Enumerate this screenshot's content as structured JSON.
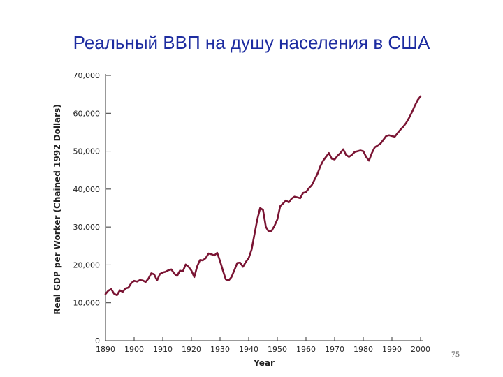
{
  "slide": {
    "title": "Реальный ВВП на душу населения в США",
    "page_number": "75"
  },
  "colors": {
    "line": "#7a1433",
    "axis": "#333333",
    "title": "#1d2ca0"
  },
  "chart_data": {
    "type": "line",
    "title": "Реальный ВВП на душу населения в США",
    "xlabel": "Year",
    "ylabel": "Real GDP per Worker (Chained 1992 Dollars)",
    "xlim": [
      1890,
      2000
    ],
    "ylim": [
      0,
      70000
    ],
    "grid": false,
    "x_ticks": [
      1890,
      1900,
      1910,
      1920,
      1930,
      1940,
      1950,
      1960,
      1970,
      1980,
      1990,
      2000
    ],
    "x_tick_labels": [
      "1890",
      "1900",
      "1910",
      "1920",
      "1930",
      "1940",
      "1950",
      "1960",
      "1970",
      "1980",
      "1990",
      "2000"
    ],
    "y_ticks": [
      0,
      10000,
      20000,
      30000,
      40000,
      50000,
      60000,
      70000
    ],
    "y_tick_labels": [
      "0",
      "10,000",
      "20,000",
      "30,000",
      "40,000",
      "50,000",
      "60,000",
      "70,000"
    ],
    "series": [
      {
        "name": "",
        "x": [
          1890,
          1891,
          1892,
          1893,
          1894,
          1895,
          1896,
          1897,
          1898,
          1899,
          1900,
          1901,
          1902,
          1903,
          1904,
          1905,
          1906,
          1907,
          1908,
          1909,
          1910,
          1911,
          1912,
          1913,
          1914,
          1915,
          1916,
          1917,
          1918,
          1919,
          1920,
          1921,
          1922,
          1923,
          1924,
          1925,
          1926,
          1927,
          1928,
          1929,
          1930,
          1931,
          1932,
          1933,
          1934,
          1935,
          1936,
          1937,
          1938,
          1939,
          1940,
          1941,
          1942,
          1943,
          1944,
          1945,
          1946,
          1947,
          1948,
          1949,
          1950,
          1951,
          1952,
          1953,
          1954,
          1955,
          1956,
          1957,
          1958,
          1959,
          1960,
          1961,
          1962,
          1963,
          1964,
          1965,
          1966,
          1967,
          1968,
          1969,
          1970,
          1971,
          1972,
          1973,
          1974,
          1975,
          1976,
          1977,
          1978,
          1979,
          1980,
          1981,
          1982,
          1983,
          1984,
          1985,
          1986,
          1987,
          1988,
          1989,
          1990,
          1991,
          1992,
          1993,
          1994,
          1995,
          1996,
          1997,
          1998,
          1999,
          2000
        ],
        "values": [
          12300,
          13200,
          13600,
          12400,
          12000,
          13300,
          12900,
          13800,
          14000,
          15200,
          15800,
          15600,
          16000,
          15900,
          15500,
          16400,
          17800,
          17500,
          15900,
          17600,
          18000,
          18200,
          18600,
          18800,
          17700,
          17100,
          18500,
          18300,
          20100,
          19500,
          18500,
          16800,
          19600,
          21300,
          21200,
          21800,
          23000,
          22800,
          22500,
          23200,
          21000,
          18500,
          16200,
          15900,
          16800,
          18600,
          20500,
          20600,
          19500,
          20800,
          21800,
          24000,
          28000,
          32000,
          35000,
          34500,
          30000,
          28800,
          29000,
          30300,
          32000,
          35500,
          36200,
          37000,
          36500,
          37500,
          38000,
          37800,
          37600,
          39000,
          39200,
          40200,
          41000,
          42500,
          44000,
          46000,
          47500,
          48500,
          49500,
          48000,
          47800,
          48800,
          49500,
          50500,
          49000,
          48500,
          49000,
          49800,
          50000,
          50200,
          50000,
          48500,
          47500,
          49500,
          51000,
          51500,
          52000,
          53000,
          54000,
          54200,
          54000,
          53800,
          54800,
          55700,
          56500,
          57500,
          58800,
          60300,
          62000,
          63500,
          64500
        ]
      }
    ]
  }
}
